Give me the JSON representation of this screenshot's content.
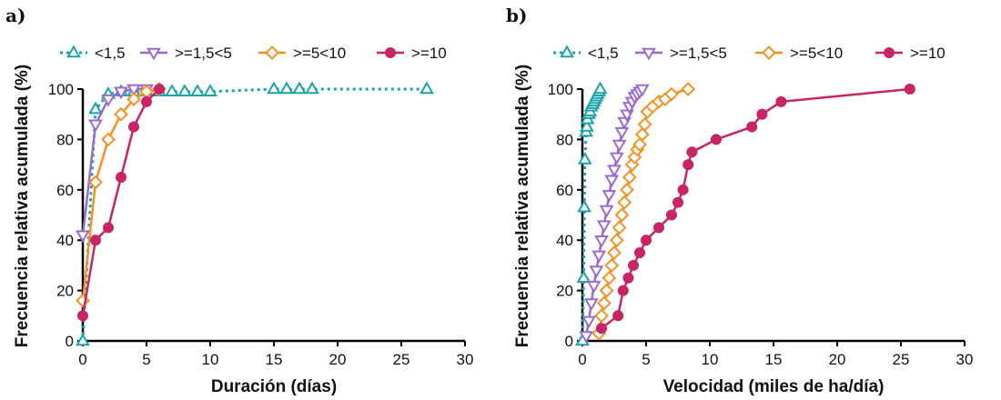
{
  "colors": {
    "lt_1_5": "#1aa3a8",
    "1_5_to_5": "#9a6ad0",
    "5_to_10": "#f39223",
    "ge_10": "#c72566",
    "axis": "#000000"
  },
  "chart_data": [
    {
      "panel_label": "a)",
      "type": "line",
      "xlabel": "Duración (días)",
      "ylabel": "Frecuencia relativa acumulada (%)",
      "xlim": [
        0,
        30
      ],
      "ylim": [
        0,
        100
      ],
      "xticks": [
        0,
        5,
        10,
        15,
        20,
        25,
        30
      ],
      "yticks": [
        0,
        20,
        40,
        60,
        80,
        100
      ],
      "grid": false,
      "legend_placement": "top",
      "series": [
        {
          "name": "<1,5",
          "marker": "triangle-up-open",
          "line": "dotted",
          "color": "#1aa3a8",
          "x": [
            0,
            1,
            2,
            3,
            4,
            5,
            6,
            7,
            8,
            9,
            10,
            15,
            16,
            17,
            18,
            27
          ],
          "y": [
            0,
            92,
            98,
            99,
            99,
            99,
            99,
            99,
            99,
            99,
            99,
            100,
            100,
            100,
            100,
            100
          ]
        },
        {
          "name": ">=1,5<5",
          "marker": "triangle-down-open",
          "line": "solid",
          "color": "#9a6ad0",
          "x": [
            0,
            1,
            2,
            3,
            4,
            5
          ],
          "y": [
            42,
            86,
            96,
            99,
            100,
            100
          ]
        },
        {
          "name": ">=5<10",
          "marker": "diamond-open",
          "line": "solid",
          "color": "#f39223",
          "x": [
            0,
            1,
            2,
            3,
            4,
            5,
            6
          ],
          "y": [
            16,
            63,
            80,
            90,
            96,
            99,
            100
          ]
        },
        {
          "name": ">=10",
          "marker": "circle-filled",
          "line": "solid",
          "color": "#c72566",
          "x": [
            0,
            1,
            2,
            3,
            4,
            5,
            6
          ],
          "y": [
            10,
            40,
            45,
            65,
            85,
            95,
            100
          ]
        }
      ]
    },
    {
      "panel_label": "b)",
      "type": "line",
      "xlabel": "Velocidad (miles de ha/día)",
      "ylabel": "Frecuencia relativa acumulada (%)",
      "xlim": [
        0,
        30
      ],
      "ylim": [
        0,
        100
      ],
      "xticks": [
        0,
        5,
        10,
        15,
        20,
        25,
        30
      ],
      "yticks": [
        0,
        20,
        40,
        60,
        80,
        100
      ],
      "grid": false,
      "legend_placement": "top",
      "series": [
        {
          "name": "<1,5",
          "marker": "triangle-up-open",
          "line": "dotted",
          "color": "#1aa3a8",
          "x": [
            0,
            0.1,
            0.15,
            0.2,
            0.3,
            0.35,
            0.4,
            0.5,
            0.6,
            0.7,
            0.8,
            0.9,
            1.0,
            1.1,
            1.2,
            1.3,
            1.4
          ],
          "y": [
            0,
            25,
            53,
            72,
            83,
            85,
            88,
            90,
            91,
            93,
            94,
            95,
            96,
            97,
            98,
            99,
            100
          ]
        },
        {
          "name": ">=1,5<5",
          "marker": "triangle-down-open",
          "line": "solid",
          "color": "#9a6ad0",
          "x": [
            0.3,
            0.5,
            0.7,
            0.9,
            1.1,
            1.3,
            1.5,
            1.7,
            1.9,
            2.1,
            2.3,
            2.5,
            2.7,
            2.9,
            3.1,
            3.3,
            3.5,
            3.7,
            3.9,
            4.1,
            4.3,
            4.5,
            4.7
          ],
          "y": [
            2,
            8,
            15,
            22,
            28,
            34,
            40,
            46,
            52,
            58,
            64,
            68,
            73,
            78,
            83,
            87,
            90,
            93,
            95,
            97,
            98,
            99,
            100
          ]
        },
        {
          "name": ">=5<10",
          "marker": "diamond-open",
          "line": "solid",
          "color": "#f39223",
          "x": [
            1.3,
            1.5,
            1.7,
            1.9,
            2.1,
            2.3,
            2.5,
            2.7,
            2.9,
            3.1,
            3.3,
            3.5,
            3.7,
            3.9,
            4.1,
            4.3,
            4.5,
            4.7,
            4.9,
            5.1,
            5.5,
            6.0,
            6.5,
            7.0,
            8.3
          ],
          "y": [
            3,
            10,
            15,
            20,
            25,
            30,
            35,
            40,
            45,
            50,
            55,
            60,
            65,
            70,
            73,
            76,
            78,
            82,
            86,
            91,
            93,
            95,
            96,
            98,
            100
          ]
        },
        {
          "name": ">=10",
          "marker": "circle-filled",
          "line": "solid",
          "color": "#c72566",
          "x": [
            1.5,
            2.8,
            3.2,
            3.6,
            4.0,
            4.5,
            5.0,
            6.0,
            7.0,
            7.5,
            7.9,
            8.3,
            8.6,
            10.5,
            13.3,
            14.1,
            15.6,
            25.7
          ],
          "y": [
            5,
            10,
            20,
            25,
            30,
            35,
            40,
            45,
            50,
            55,
            60,
            70,
            75,
            80,
            85,
            90,
            95,
            100
          ]
        }
      ]
    }
  ]
}
